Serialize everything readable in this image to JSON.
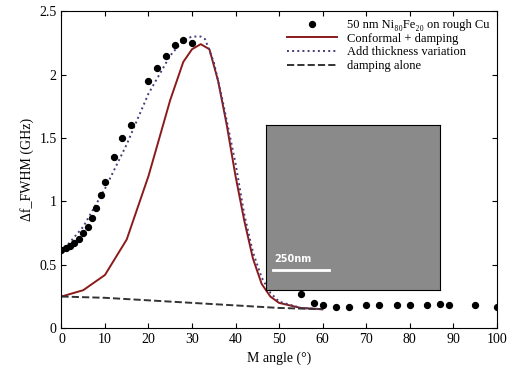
{
  "chart_data": {
    "type": "line",
    "x_label": "M angle (°)",
    "y_label": "Δf_FWHM (GHz)",
    "xlim": [
      0,
      100
    ],
    "xticks": [
      0,
      10,
      20,
      30,
      40,
      50,
      60,
      70,
      80,
      90,
      100
    ],
    "ylim": [
      0,
      2.5
    ],
    "yticks": [
      0,
      0.5,
      1,
      1.5,
      2,
      2.5
    ],
    "legend": "upper right",
    "annotations": [
      "250nm"
    ],
    "series": [
      {
        "name": "50 nm Ni₈₀Fe₂₀ on rough Cu",
        "type": "scatter",
        "color": "#000000",
        "marker": "o",
        "x": [
          0,
          1,
          2,
          3,
          4,
          5,
          6,
          7,
          8,
          9,
          10,
          12,
          14,
          16,
          20,
          22,
          24,
          26,
          28,
          30,
          55,
          58,
          60,
          63,
          66,
          70,
          73,
          77,
          80,
          84,
          87,
          89,
          95,
          100
        ],
        "values": [
          0.62,
          0.63,
          0.65,
          0.67,
          0.7,
          0.75,
          0.8,
          0.87,
          0.95,
          1.05,
          1.15,
          1.35,
          1.5,
          1.6,
          1.95,
          2.05,
          2.15,
          2.23,
          2.27,
          2.25,
          0.27,
          0.2,
          0.18,
          0.17,
          0.17,
          0.18,
          0.18,
          0.18,
          0.18,
          0.18,
          0.19,
          0.18,
          0.18,
          0.17
        ]
      },
      {
        "name": "Conformal + damping",
        "type": "line",
        "color": "#8b1a1a",
        "line_style": "solid",
        "x": [
          0,
          5,
          10,
          15,
          20,
          25,
          28,
          30,
          32,
          34,
          36,
          38,
          40,
          42,
          44,
          46,
          48,
          50,
          55,
          60
        ],
        "values": [
          0.25,
          0.3,
          0.42,
          0.7,
          1.2,
          1.8,
          2.1,
          2.2,
          2.24,
          2.2,
          1.95,
          1.6,
          1.2,
          0.85,
          0.55,
          0.35,
          0.25,
          0.2,
          0.16,
          0.15
        ]
      },
      {
        "name": "Add thickness variation",
        "type": "line",
        "color": "#4a3a7a",
        "line_style": "dotted",
        "x": [
          0,
          5,
          10,
          15,
          20,
          25,
          28,
          30,
          32,
          33,
          35,
          37,
          40,
          42,
          44,
          46,
          48,
          50,
          55,
          60
        ],
        "values": [
          0.6,
          0.8,
          1.1,
          1.45,
          1.85,
          2.15,
          2.27,
          2.3,
          2.3,
          2.28,
          2.1,
          1.8,
          1.3,
          0.9,
          0.6,
          0.4,
          0.28,
          0.21,
          0.16,
          0.15
        ]
      },
      {
        "name": "damping alone",
        "type": "line",
        "color": "#333333",
        "line_style": "dashed",
        "x": [
          0,
          10,
          20,
          30,
          40,
          50,
          60
        ],
        "values": [
          0.25,
          0.24,
          0.22,
          0.2,
          0.18,
          0.16,
          0.15
        ]
      }
    ]
  }
}
